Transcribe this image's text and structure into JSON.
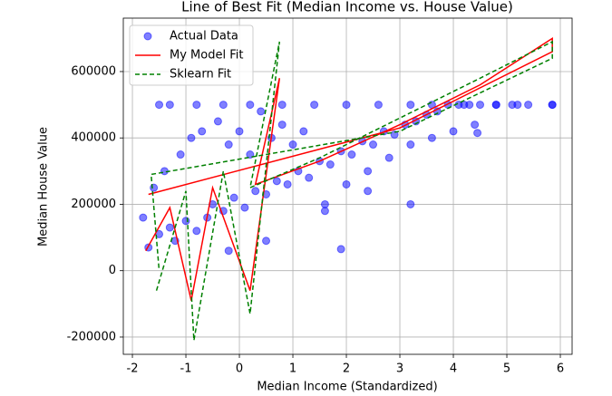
{
  "chart_data": {
    "type": "scatter",
    "title": "Line of Best Fit (Median Income vs. House Value)",
    "x_label": "Median Income (Standardized)",
    "y_label": "Median House Value",
    "xlim": [
      -2.17,
      6.22
    ],
    "ylim": [
      -252000,
      761000
    ],
    "xticks": [
      -2,
      -1,
      0,
      1,
      2,
      3,
      4,
      5,
      6
    ],
    "yticks": [
      -200000,
      0,
      200000,
      400000,
      600000
    ],
    "grid": true,
    "legend": "upper left",
    "series": [
      {
        "name": "Actual Data",
        "color": "#0000ff",
        "style": "scatter",
        "x": [
          -1.8,
          -1.7,
          -1.5,
          -1.3,
          -1.2,
          -1.0,
          -0.8,
          -0.6,
          -0.5,
          -0.3,
          -0.1,
          0.1,
          0.3,
          0.5,
          0.7,
          0.9,
          1.1,
          1.3,
          1.5,
          1.7,
          1.9,
          2.1,
          2.3,
          2.5,
          2.7,
          2.9,
          3.1,
          3.3,
          3.5,
          3.7,
          3.9,
          4.1,
          4.3,
          4.5,
          4.8,
          5.1,
          5.4,
          5.85,
          -1.6,
          -1.4,
          -1.1,
          -0.9,
          -0.7,
          -0.4,
          -0.2,
          0.0,
          0.2,
          0.4,
          0.6,
          0.8,
          1.0,
          1.2,
          1.6,
          2.0,
          2.4,
          2.8,
          3.2,
          3.6,
          4.0,
          4.4,
          -1.5,
          -1.3,
          -0.8,
          -0.3,
          0.2,
          0.8,
          1.4,
          2.0,
          2.6,
          3.2,
          3.6,
          4.2,
          4.45,
          4.8,
          5.2,
          5.85,
          1.9,
          1.6,
          3.2,
          2.4,
          -0.2,
          0.5
        ],
        "values": [
          160000,
          70000,
          110000,
          130000,
          90000,
          150000,
          120000,
          160000,
          200000,
          180000,
          220000,
          190000,
          240000,
          230000,
          270000,
          260000,
          300000,
          280000,
          330000,
          320000,
          360000,
          350000,
          390000,
          380000,
          420000,
          410000,
          440000,
          450000,
          470000,
          480000,
          500000,
          500000,
          500000,
          500000,
          500000,
          500000,
          500000,
          500000,
          250000,
          300000,
          350000,
          400000,
          420000,
          450000,
          380000,
          420000,
          350000,
          480000,
          400000,
          440000,
          380000,
          420000,
          200000,
          260000,
          300000,
          340000,
          380000,
          400000,
          420000,
          440000,
          500000,
          500000,
          500000,
          500000,
          500000,
          500000,
          500000,
          500000,
          500000,
          500000,
          500000,
          500000,
          415000,
          500000,
          500000,
          500000,
          65000,
          180000,
          200000,
          240000,
          60000,
          90000
        ]
      },
      {
        "name": "My Model Fit",
        "color": "#ff0000",
        "style": "solid",
        "x": [
          -1.75,
          -1.3,
          -0.9,
          -0.5,
          0.2,
          0.75,
          0.3,
          1.5,
          3,
          4.5,
          5.85,
          5.85,
          3,
          -1.7
        ],
        "values": [
          60000,
          190000,
          -90000,
          250000,
          -60000,
          580000,
          260000,
          330000,
          440000,
          560000,
          700000,
          660000,
          430000,
          230000
        ]
      },
      {
        "name": "Sklearn Fit",
        "color": "#008000",
        "style": "dashed",
        "x": [
          -1.55,
          -1.0,
          -0.85,
          -0.3,
          0.2,
          0.75,
          0.2,
          1.5,
          3,
          4.5,
          5.85,
          5.85,
          3,
          -1.65,
          -1.5
        ],
        "values": [
          -60000,
          240000,
          -210000,
          300000,
          -130000,
          690000,
          250000,
          340000,
          460000,
          580000,
          690000,
          640000,
          420000,
          290000,
          0
        ]
      }
    ]
  }
}
